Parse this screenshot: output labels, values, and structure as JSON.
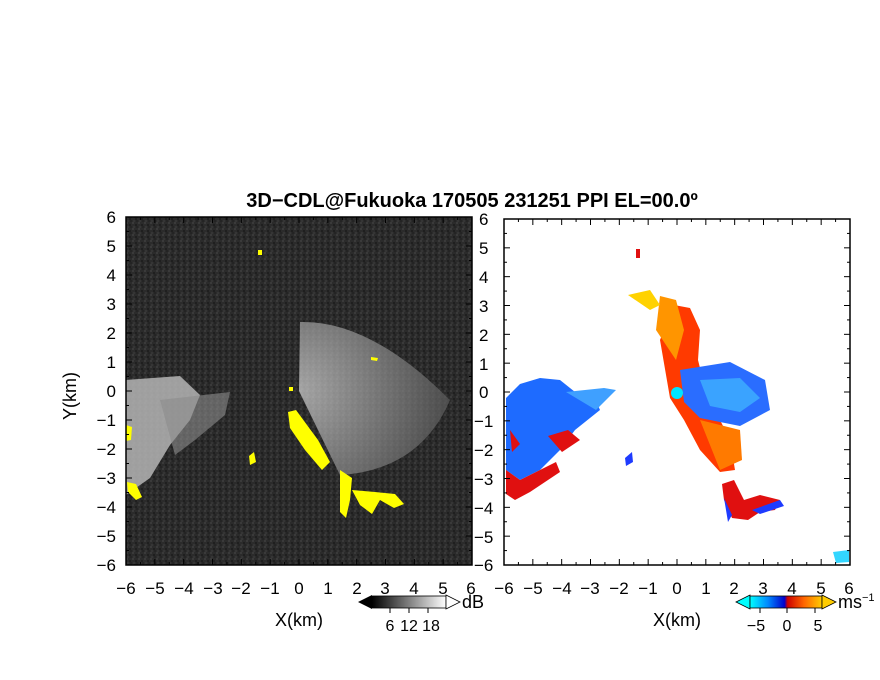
{
  "chart_data": [
    {
      "type": "heatmap",
      "panel": "reflectivity",
      "title": "3D−CDL@Fukuoka 170505 231251 PPI EL=00.0º",
      "xlabel": "X(km)",
      "ylabel": "Y(km)",
      "xlim": [
        -6,
        6
      ],
      "ylim": [
        -6,
        6
      ],
      "x_ticks": [
        "−6",
        "−5",
        "−4",
        "−3",
        "−2",
        "−1",
        "0",
        "1",
        "2",
        "3",
        "4",
        "5",
        "6"
      ],
      "y_ticks": [
        "6",
        "5",
        "4",
        "3",
        "2",
        "1",
        "0",
        "−1",
        "−2",
        "−3",
        "−4",
        "−5",
        "−6"
      ],
      "colorbar": {
        "unit": "dB",
        "ticks": [
          "6",
          "12",
          "18"
        ],
        "range": [
          0,
          24
        ],
        "colors": [
          "#000000",
          "#ffffff"
        ]
      },
      "overlay_color": "#ffff00",
      "background_color": "#2a2a2a"
    },
    {
      "type": "heatmap",
      "panel": "doppler_velocity",
      "xlabel": "X(km)",
      "xlim": [
        -6,
        6
      ],
      "ylim": [
        -6,
        6
      ],
      "x_ticks": [
        "−6",
        "−5",
        "−4",
        "−3",
        "−2",
        "−1",
        "0",
        "1",
        "2",
        "3",
        "4",
        "5",
        "6"
      ],
      "y_ticks": [
        "6",
        "5",
        "4",
        "3",
        "2",
        "1",
        "0",
        "−1",
        "−2",
        "−3",
        "−4",
        "−5",
        "−6"
      ],
      "colorbar": {
        "unit": "ms",
        "unit_superscript": "−1",
        "ticks": [
          "−5",
          "0",
          "5"
        ],
        "range": [
          -7,
          7
        ],
        "colors": [
          "#00ffff",
          "#0088ff",
          "#0000cc",
          "#cc0000",
          "#ff6600",
          "#ffcc00"
        ]
      },
      "radar_marker_color": "#00e5ff",
      "background_color": "#ffffff"
    }
  ]
}
